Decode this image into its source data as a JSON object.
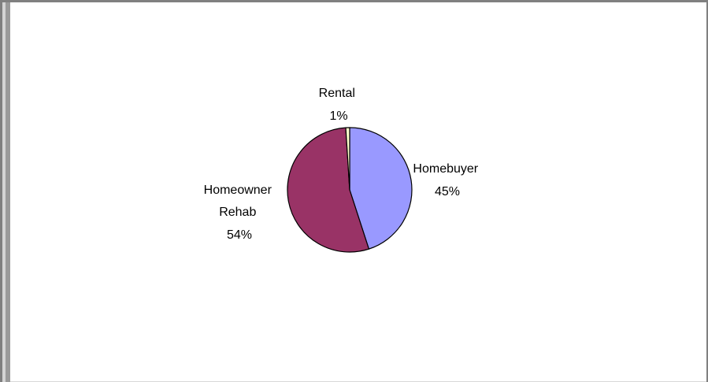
{
  "chart_data": {
    "type": "pie",
    "slices": [
      {
        "label": [
          "Homebuyer"
        ],
        "percent_label": "45%",
        "value": 45,
        "color": "#9999ff"
      },
      {
        "label": [
          "Homeowner",
          "Rehab"
        ],
        "percent_label": "54%",
        "value": 54,
        "color": "#993366"
      },
      {
        "label": [
          "Rental"
        ],
        "percent_label": "1%",
        "value": 1,
        "color": "#ffffcc"
      }
    ],
    "start_angle_deg": 0,
    "direction": "clockwise",
    "legend": "none",
    "title": ""
  }
}
